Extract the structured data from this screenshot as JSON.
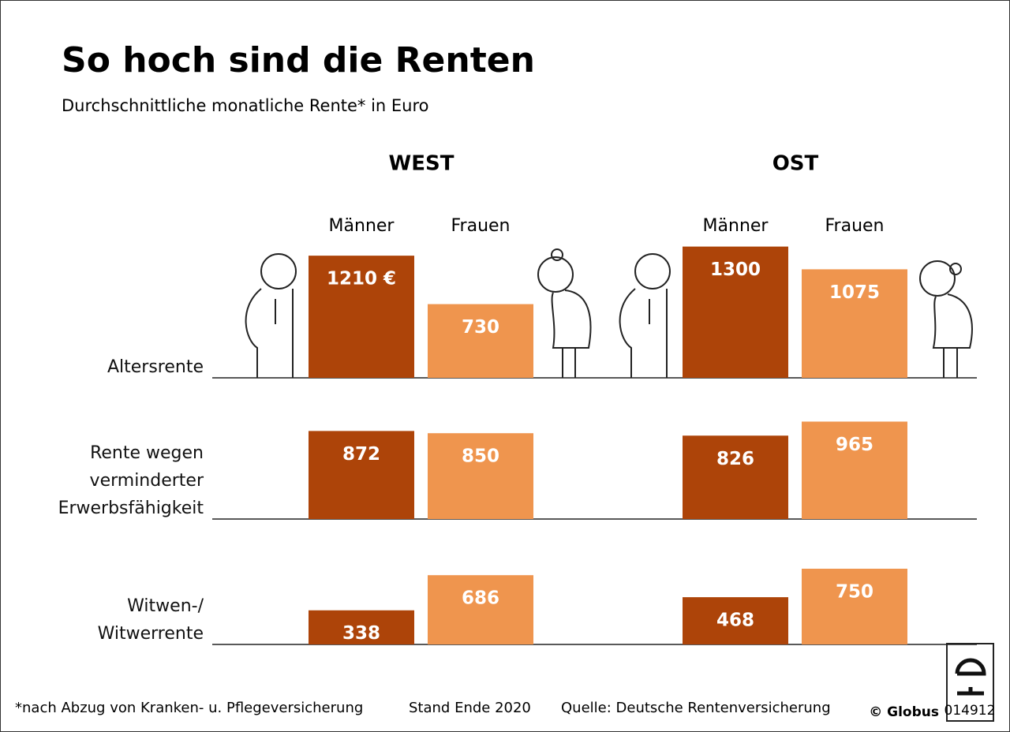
{
  "chart_data": {
    "type": "bar",
    "title": "So hoch sind die Renten",
    "subtitle": "Durchschnittliche monatliche Rente* in Euro",
    "groups": [
      "WEST",
      "OST"
    ],
    "categories": [
      "Altersrente",
      "Rente wegen\nverminderter\nErwerbsfähigkeit",
      "Witwen-/\nWitwerrente"
    ],
    "series": [
      {
        "name": "Männer",
        "group": 0,
        "color": "#ad4409",
        "values": [
          1210,
          872,
          338
        ],
        "value_labels": [
          "1210 €",
          "872",
          "338"
        ]
      },
      {
        "name": "Frauen",
        "group": 0,
        "color": "#ef954e",
        "values": [
          730,
          850,
          686
        ]
      },
      {
        "name": "Männer",
        "group": 1,
        "color": "#ad4409",
        "values": [
          1300,
          826,
          468
        ]
      },
      {
        "name": "Frauen",
        "group": 1,
        "color": "#ef954e",
        "values": [
          1075,
          965,
          750
        ]
      }
    ],
    "footnote": "*nach Abzug von Kranken- u. Pflegeversicherung",
    "date_note": "Stand Ende 2020",
    "source": "Quelle: Deutsche Rentenversicherung",
    "credit": "© Globus",
    "code": "014912"
  }
}
